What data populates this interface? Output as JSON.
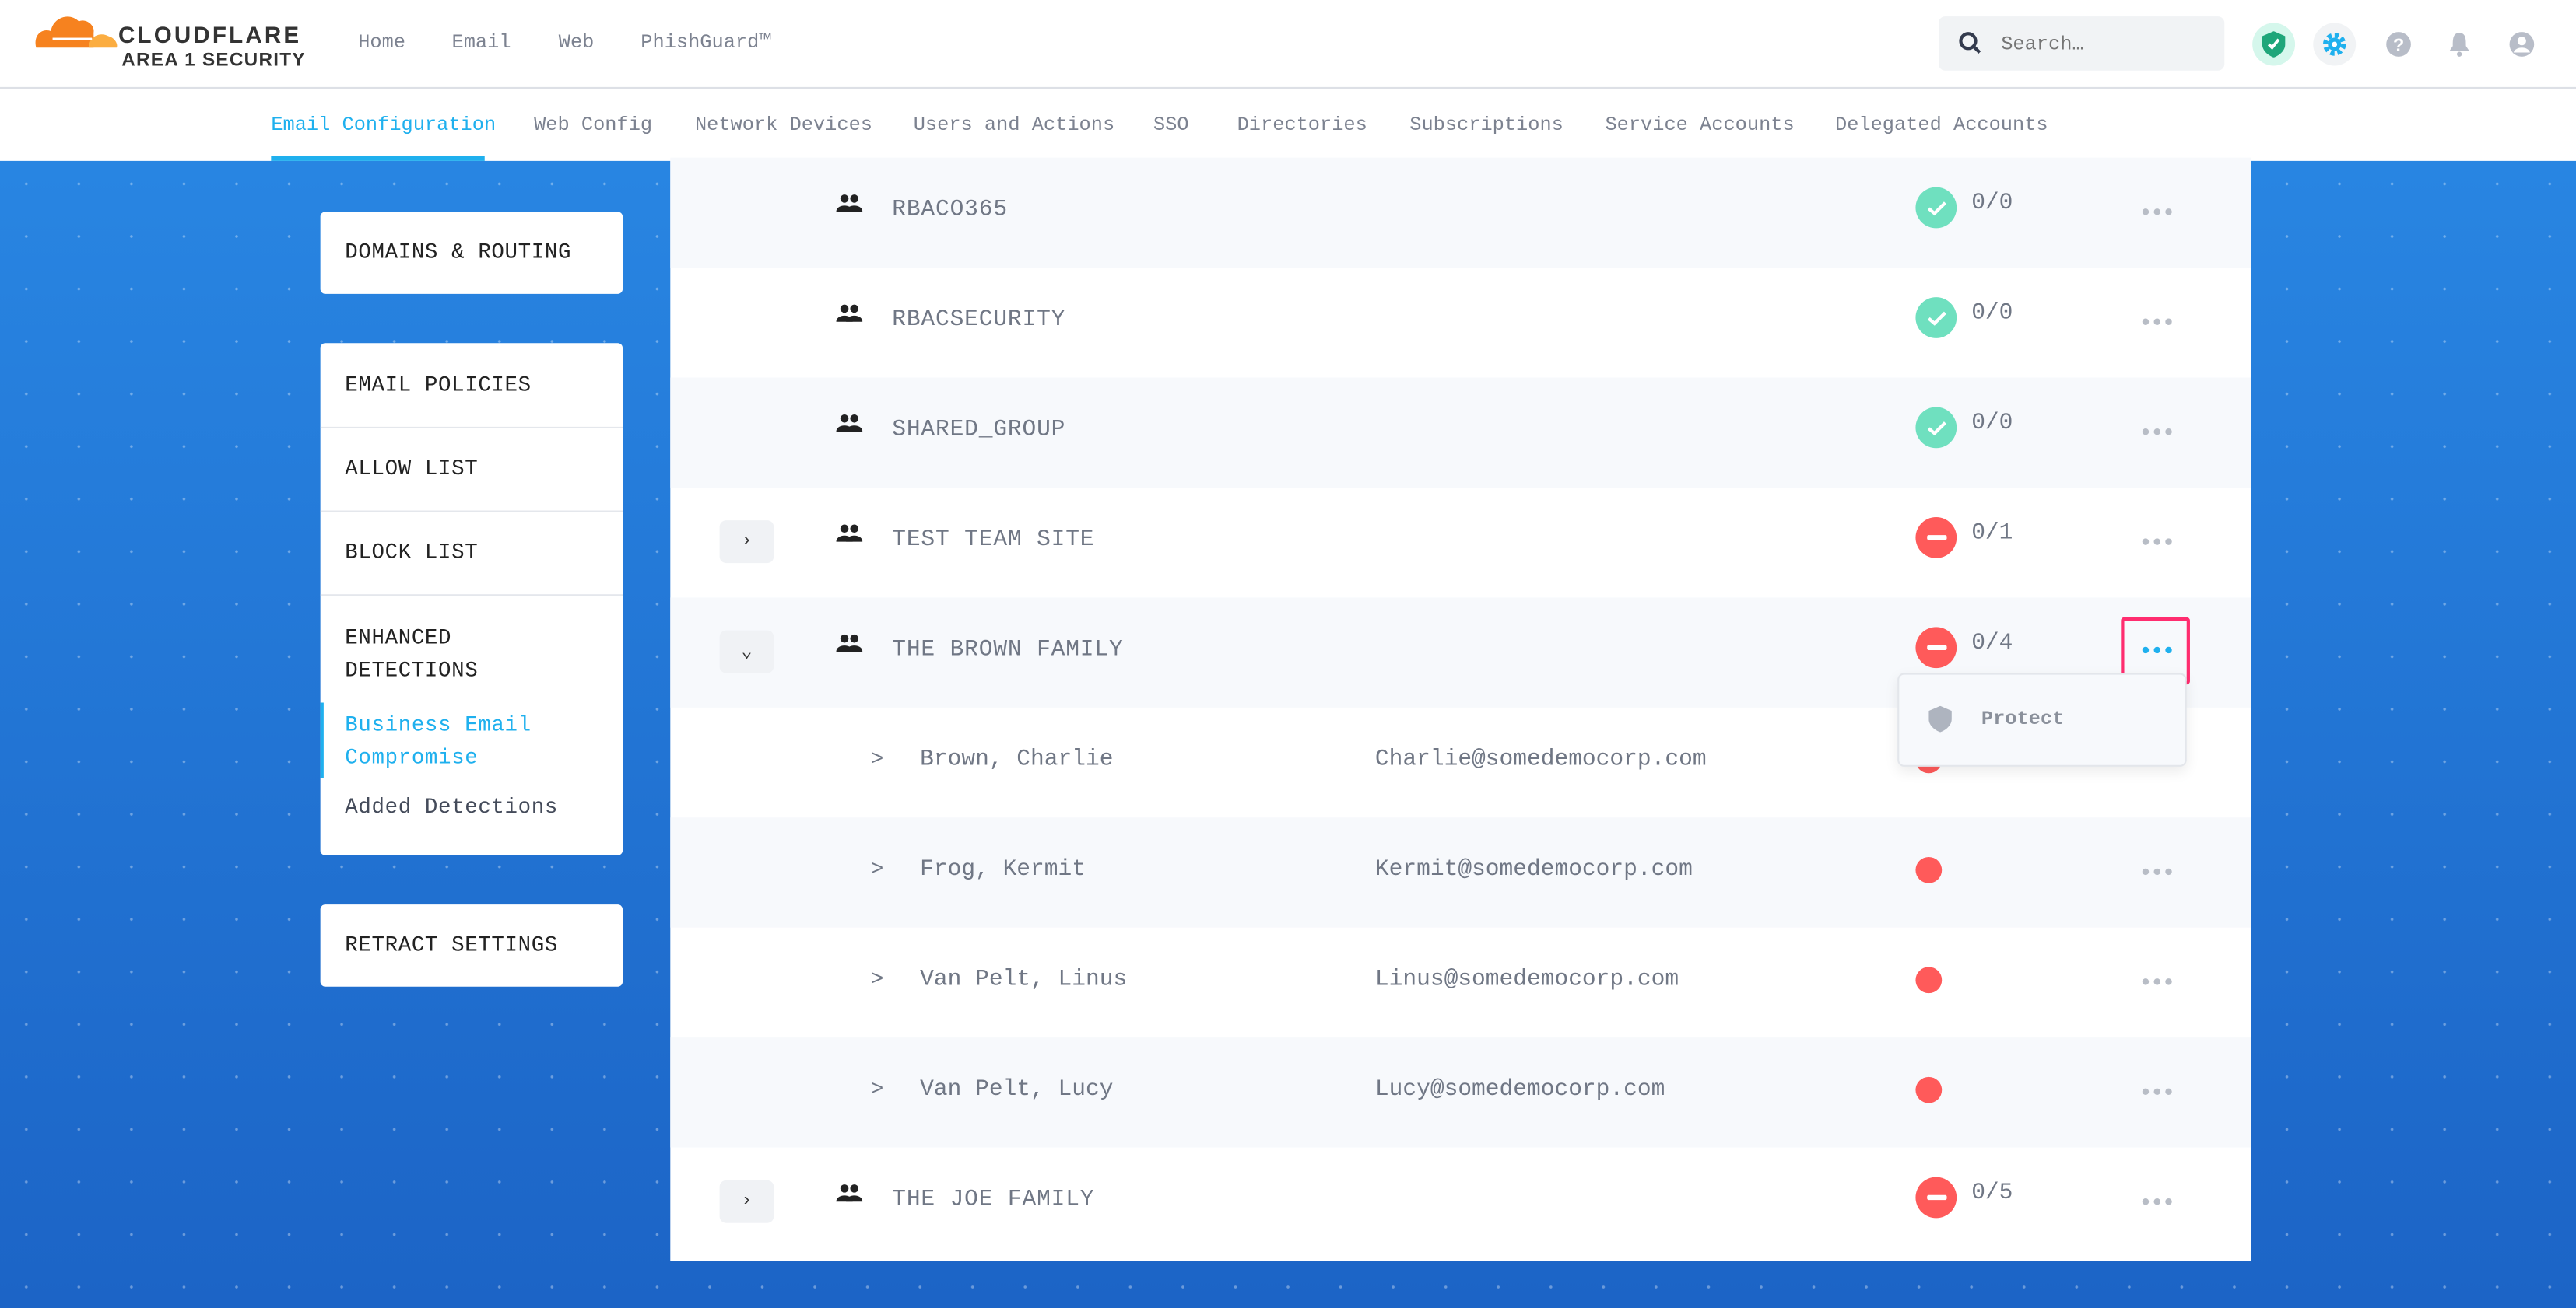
{
  "header": {
    "brand": "CLOUDFLARE",
    "sub_brand": "AREA 1 SECURITY",
    "nav": [
      "Home",
      "Email",
      "Web",
      "PhishGuard™"
    ],
    "search_placeholder": "Search…"
  },
  "subnav": {
    "tabs": [
      "Email Configuration",
      "Web Config",
      "Network Devices",
      "Users and Actions",
      "SSO",
      "Directories",
      "Subscriptions",
      "Service Accounts",
      "Delegated Accounts"
    ],
    "active": "Email Configuration"
  },
  "sidebar": {
    "domains": "DOMAINS & ROUTING",
    "policies": "EMAIL POLICIES",
    "allow": "ALLOW LIST",
    "block": "BLOCK LIST",
    "enhanced": "ENHANCED DETECTIONS",
    "bec": "Business Email Compromise",
    "added": "Added Detections",
    "retract": "RETRACT SETTINGS"
  },
  "rows": [
    {
      "type": "group",
      "name": "RBACO365",
      "status": "ok",
      "count": "0/0"
    },
    {
      "type": "group",
      "name": "RBACSECURITY",
      "status": "ok",
      "count": "0/0"
    },
    {
      "type": "group",
      "name": "SHARED_GROUP",
      "status": "ok",
      "count": "0/0"
    },
    {
      "type": "group",
      "name": "TEST TEAM SITE",
      "status": "blocked",
      "count": "0/1",
      "expand": "collapsed"
    },
    {
      "type": "group",
      "name": "THE BROWN FAMILY",
      "status": "blocked",
      "count": "0/4",
      "expand": "expanded"
    },
    {
      "type": "member",
      "name": "Brown, Charlie",
      "email": "Charlie@somedemocorp.com"
    },
    {
      "type": "member",
      "name": "Frog, Kermit",
      "email": "Kermit@somedemocorp.com"
    },
    {
      "type": "member",
      "name": "Van Pelt, Linus",
      "email": "Linus@somedemocorp.com"
    },
    {
      "type": "member",
      "name": "Van Pelt, Lucy",
      "email": "Lucy@somedemocorp.com"
    },
    {
      "type": "group",
      "name": "THE JOE FAMILY",
      "status": "blocked",
      "count": "0/5",
      "expand": "collapsed"
    }
  ],
  "menu": {
    "protect": "Protect"
  },
  "colors": {
    "accent": "#1fb0ee",
    "ok": "#6fe0bf",
    "blocked": "#ff5a5a",
    "highlight": "#ff2d6f"
  }
}
